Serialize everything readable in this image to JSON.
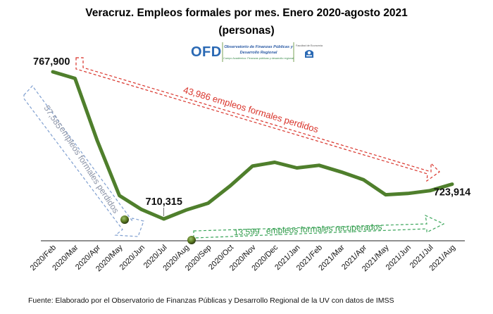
{
  "chart_data": {
    "type": "line",
    "title": "Veracruz. Empleos formales por mes. Enero 2020-agosto 2021",
    "subtitle": "(personas)",
    "categories": [
      "2020/Feb",
      "2020/Mar",
      "2020/Apr",
      "2020/May",
      "2020/Jun",
      "2020/Jul",
      "2020/Aug",
      "2020/Sep",
      "2020/Oct",
      "2020/Nov",
      "2020/Dec",
      "2021/Jan",
      "2021/Feb",
      "2021/Mar",
      "2021/Apr",
      "2021/May",
      "2021/Jun",
      "2021/Jul",
      "2021/Aug"
    ],
    "values": [
      767900,
      765300,
      741000,
      719500,
      714000,
      710315,
      713800,
      716500,
      723300,
      731000,
      732500,
      730300,
      731300,
      728700,
      725700,
      719800,
      720300,
      721400,
      723914
    ],
    "point_labels": [
      {
        "index": 0,
        "text": "767,900"
      },
      {
        "index": 5,
        "text": "710,315"
      },
      {
        "index": 18,
        "text": "723,914"
      }
    ],
    "grid": false,
    "legend": "none",
    "line_color": "#4f7f2c",
    "annotations": {
      "lost_total": "43,986 empleos formales perdidos",
      "lost_first_value": "57,585",
      "lost_first_text": "empleos formales perdidos",
      "recovered_value": "13,599",
      "recovered_text": "empleos formales recuperados"
    }
  },
  "logo": {
    "acronym": "OFD",
    "name_line1": "Observatorio de Finanzas Públicas y",
    "name_line2": "Desarrollo Regional",
    "tagline": "Cuerpo Académico: Finanzas públicas y desarrollo regional",
    "partner": "Facultad de Economía"
  },
  "source": "Fuente: Elaborado por el Observatorio de Finanzas Públicas y Desarrollo Regional de la UV con datos de IMSS",
  "colors": {
    "line": "#4f7f2c",
    "red_annotation": "#d9342b",
    "blue_annotation": "#7f9fd0",
    "green_annotation": "#3aa55a",
    "axis": "#222222"
  }
}
